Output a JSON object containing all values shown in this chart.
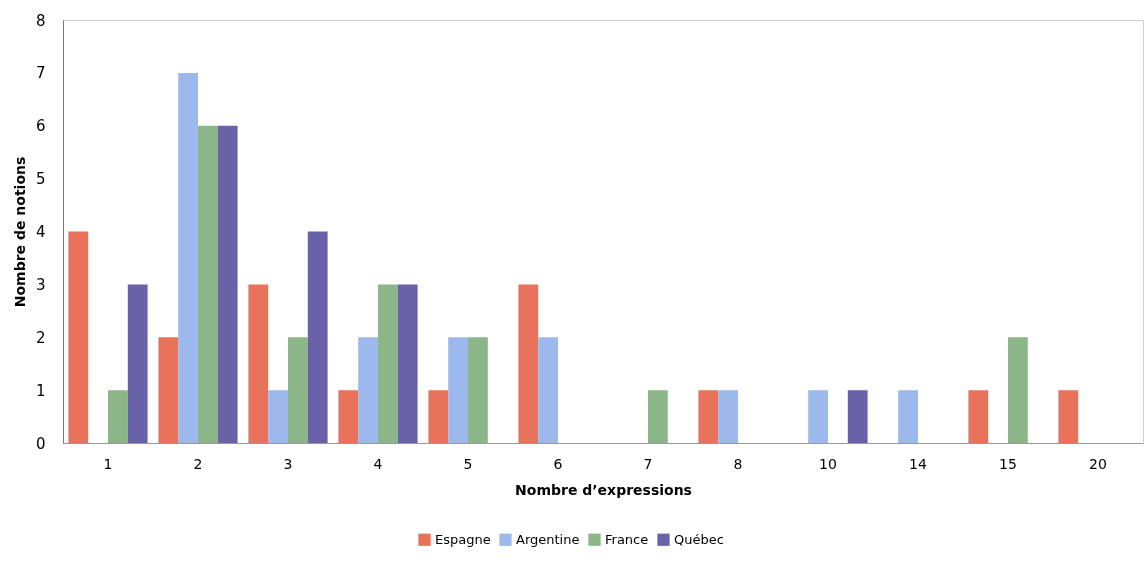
{
  "chart_data": {
    "type": "bar",
    "xlabel": "Nombre d’expressions",
    "ylabel": "Nombre de notions",
    "categories": [
      "1",
      "2",
      "3",
      "4",
      "5",
      "6",
      "7",
      "8",
      "10",
      "14",
      "15",
      "20"
    ],
    "series": [
      {
        "name": "Espagne",
        "color": "#e8735a",
        "values": [
          4,
          2,
          3,
          1,
          1,
          3,
          0,
          1,
          0,
          0,
          1,
          1
        ]
      },
      {
        "name": "Argentine",
        "color": "#9db8ec",
        "values": [
          0,
          7,
          1,
          2,
          2,
          2,
          0,
          1,
          1,
          1,
          0,
          0
        ]
      },
      {
        "name": "France",
        "color": "#8db58a",
        "values": [
          1,
          6,
          2,
          3,
          2,
          0,
          1,
          0,
          0,
          0,
          2,
          0
        ]
      },
      {
        "name": "Québec",
        "color": "#6a62a8",
        "values": [
          3,
          6,
          4,
          3,
          0,
          0,
          0,
          0,
          1,
          0,
          0,
          0
        ]
      }
    ],
    "ylim": [
      0,
      8
    ],
    "yticks": [
      0,
      1,
      2,
      3,
      4,
      5,
      6,
      7,
      8
    ],
    "legend": "bottom"
  }
}
